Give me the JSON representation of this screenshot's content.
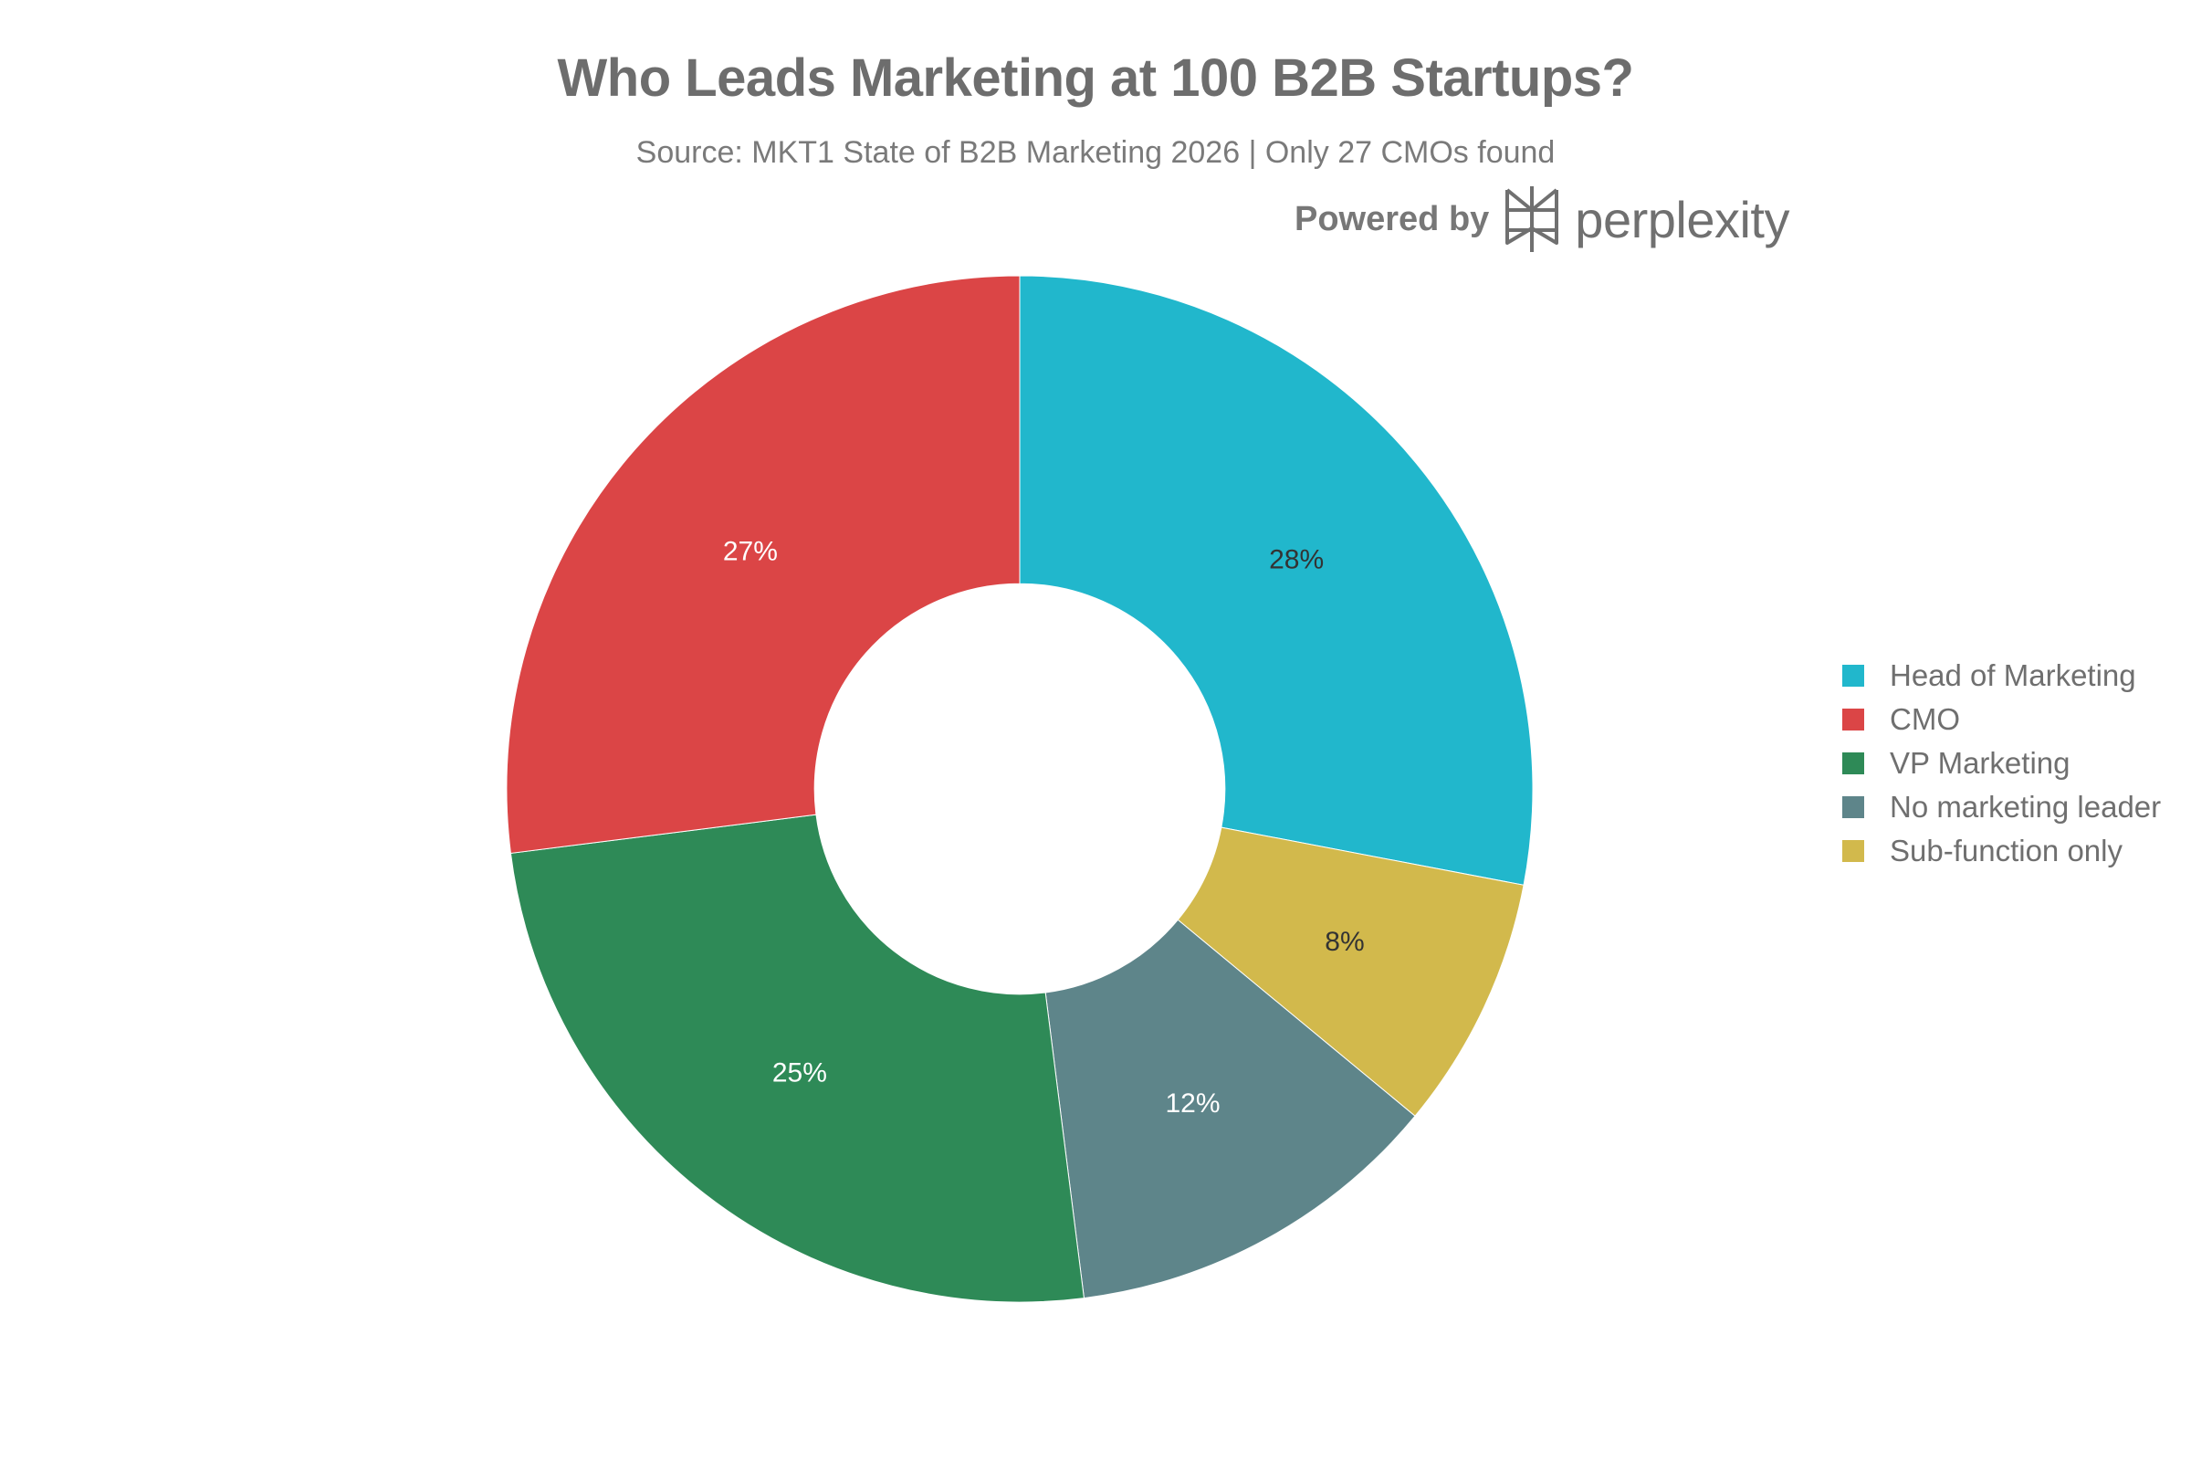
{
  "header": {
    "title": "Who Leads Marketing at 100 B2B Startups?",
    "subtitle": "Source: MKT1 State of B2B Marketing 2026 | Only 27 CMOs found",
    "powered_by_label": "Powered by",
    "powered_by_brand": "perplexity",
    "brand_icon": "perplexity-logo-icon"
  },
  "chart_data": {
    "type": "pie",
    "hole": 0.4,
    "direction": "clockwise",
    "start_angle": "12 o'clock",
    "categories": [
      "Head of Marketing",
      "Sub-function only",
      "No marketing leader",
      "VP Marketing",
      "CMO"
    ],
    "values": [
      28,
      8,
      12,
      25,
      27
    ],
    "labels": [
      "28%",
      "8%",
      "12%",
      "25%",
      "27%"
    ],
    "colors": [
      "#21b7cc",
      "#d2b94c",
      "#5e858a",
      "#2e8a57",
      "#db4546"
    ],
    "label_colors": [
      "#333333",
      "#333333",
      "#ffffff",
      "#ffffff",
      "#ffffff"
    ],
    "legend_position": "right",
    "legend": [
      {
        "label": "Head of Marketing",
        "color": "#21b7cc"
      },
      {
        "label": "CMO",
        "color": "#db4546"
      },
      {
        "label": "VP Marketing",
        "color": "#2e8a57"
      },
      {
        "label": "No marketing leader",
        "color": "#5e858a"
      },
      {
        "label": "Sub-function only",
        "color": "#d2b94c"
      }
    ]
  }
}
